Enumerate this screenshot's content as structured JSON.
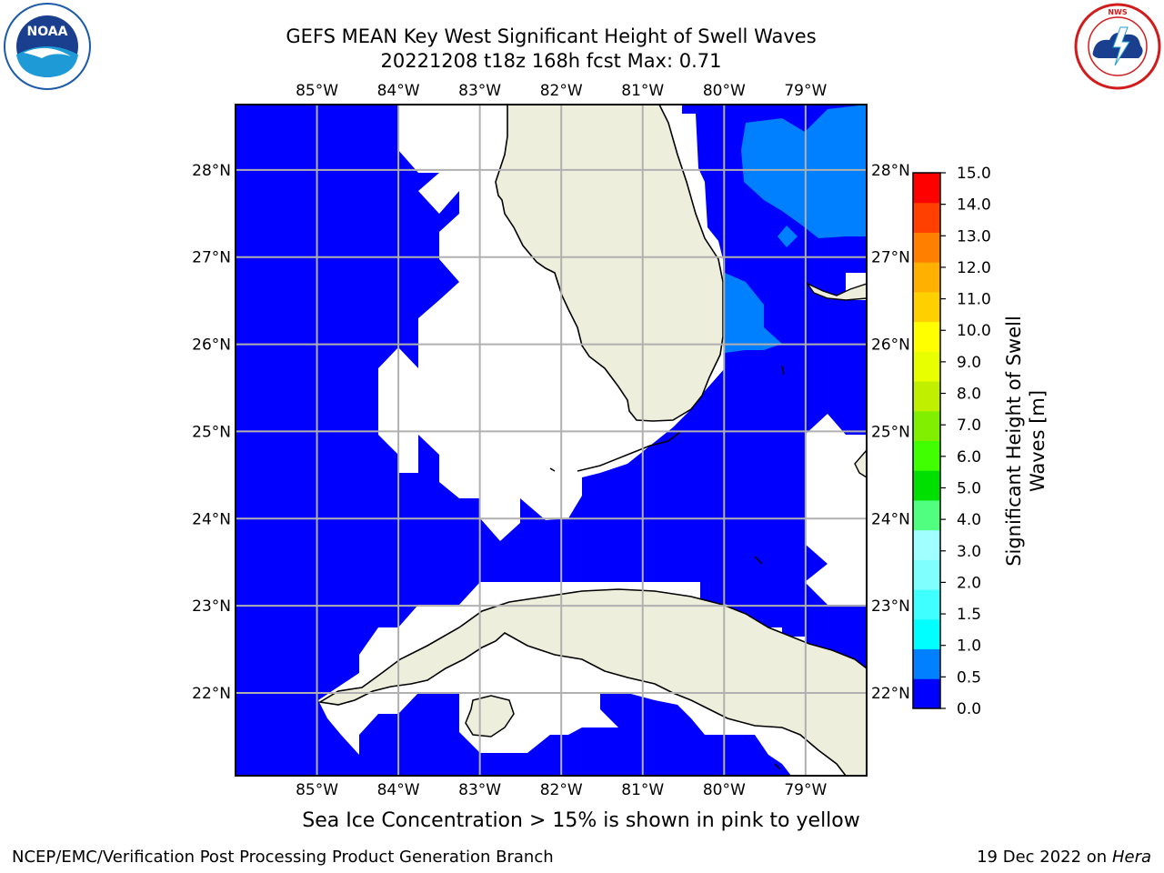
{
  "title_line1": "GEFS MEAN Key West Significant Height of Swell Waves",
  "title_line2": "20221208 t18z 168h fcst   Max: 0.71",
  "logos": {
    "left": "NOAA",
    "right": "NATIONAL WEATHER SERVICE",
    "left_icon": "noaa-logo",
    "right_icon": "nws-logo"
  },
  "map": {
    "lon_labels": [
      "85°W",
      "84°W",
      "83°W",
      "82°W",
      "81°W",
      "80°W",
      "79°W"
    ],
    "lat_labels": [
      "28°N",
      "27°N",
      "26°N",
      "25°N",
      "24°N",
      "23°N",
      "22°N"
    ],
    "lon_range": [
      -86.0,
      -78.25
    ],
    "lat_range": [
      21.05,
      28.75
    ],
    "colors": {
      "sea_level_0": "#0000ff",
      "sea_level_1": "#0080ff",
      "land": "#eeeedc",
      "masked": "#ffffff",
      "grid": "#b0b0b0"
    }
  },
  "colorbar": {
    "label": "Significant Height of Swell Waves [m]",
    "ticks": [
      "0.0",
      "0.5",
      "1.0",
      "1.5",
      "2.0",
      "3.0",
      "4.0",
      "5.0",
      "6.0",
      "7.0",
      "8.0",
      "9.0",
      "10.0",
      "11.0",
      "12.0",
      "13.0",
      "14.0",
      "15.0"
    ],
    "colors": [
      "#0000ff",
      "#0080ff",
      "#00ffff",
      "#40ffff",
      "#80ffff",
      "#a0ffff",
      "#50ff80",
      "#00e000",
      "#40ff00",
      "#80f000",
      "#c0f000",
      "#e8ff00",
      "#ffff00",
      "#ffd000",
      "#ffb000",
      "#ff8000",
      "#ff4000",
      "#ff0000"
    ]
  },
  "footer_note": "Sea Ice Concentration > 15% is shown in pink to yellow",
  "footer_left": "NCEP/EMC/Verification Post Processing Product Generation Branch",
  "footer_right_date": "19 Dec 2022 on",
  "footer_right_host": "Hera"
}
